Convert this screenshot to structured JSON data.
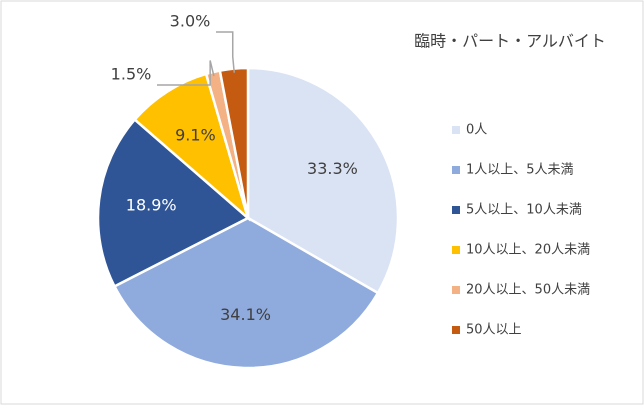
{
  "chart_data": {
    "type": "pie",
    "title": "臨時・パート・アルバイト",
    "categories": [
      "0人",
      "1人以上、5人未満",
      "5人以上、10人未満",
      "10人以上、20人未満",
      "20人以上、50人未満",
      "50人以上"
    ],
    "values": [
      33.3,
      34.1,
      18.9,
      9.1,
      1.5,
      3.0
    ],
    "value_labels": [
      "33.3%",
      "34.1%",
      "18.9%",
      "9.1%",
      "1.5%",
      "3.0%"
    ],
    "colors": [
      "#dae3f3",
      "#8faadc",
      "#2f5597",
      "#ffc000",
      "#f4b183",
      "#c55a11"
    ],
    "legend": "right"
  }
}
